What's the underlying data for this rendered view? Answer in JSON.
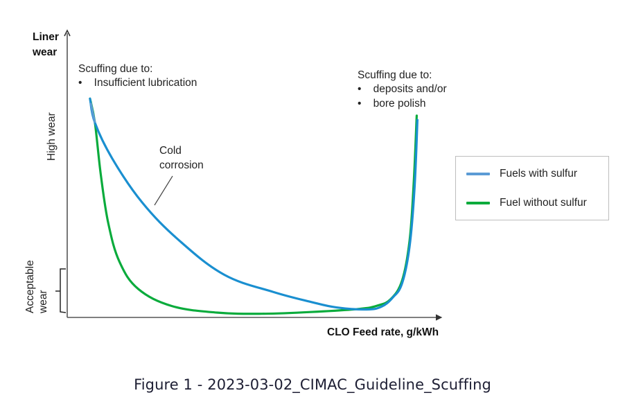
{
  "chart_data": {
    "type": "line",
    "title": "",
    "xlabel": "CLO Feed rate, g/kWh",
    "ylabel": "Liner wear",
    "xlim": [
      0,
      100
    ],
    "ylim": [
      0,
      100
    ],
    "x_ticks": [],
    "y_ticks": [],
    "y_region_labels": [
      {
        "id": "high",
        "text": "High wear"
      },
      {
        "id": "acceptable",
        "text": "Acceptable wear",
        "lines": [
          "Acceptable",
          "wear"
        ],
        "range": [
          2,
          17
        ]
      }
    ],
    "legend": {
      "placement": "right",
      "entries": [
        "Fuels with sulfur",
        "Fuel without sulfur"
      ]
    },
    "series": [
      {
        "name": "Fuels with sulfur",
        "color": "#1a8fd0",
        "legend_color": "#5b9bd5",
        "x": [
          6.1,
          7.4,
          12,
          20,
          30,
          42,
          55,
          65,
          72,
          80,
          84,
          87,
          89.5,
          91.5,
          92.8,
          93.6
        ],
        "y": [
          77,
          68.5,
          56,
          40.5,
          27,
          15,
          9,
          5.5,
          3.5,
          2.8,
          3.8,
          7,
          12,
          25,
          45,
          69.5
        ]
      },
      {
        "name": "Fuel without sulfur",
        "color": "#0aab3c",
        "legend_color": "#0aab3c",
        "x": [
          6.1,
          7.4,
          9,
          11,
          14,
          19,
          28,
          40,
          52,
          65,
          78,
          83,
          86.5,
          89.5,
          91.5,
          92.6,
          93.4
        ],
        "y": [
          77,
          68.5,
          50,
          33,
          19.5,
          10,
          4,
          1.7,
          1.3,
          1.9,
          3,
          4.2,
          6.5,
          13,
          27,
          47,
          71
        ]
      }
    ],
    "annotations": [
      {
        "id": "left",
        "lines": [
          "Scuffing due to:",
          "•    Insufficient lubrication"
        ]
      },
      {
        "id": "right",
        "lines": [
          "Scuffing due to:",
          "•    deposits and/or",
          "•    bore polish"
        ]
      },
      {
        "id": "middle",
        "lines": [
          "Cold",
          "corrosion"
        ],
        "pointer_to_series": "Fuels with sulfur"
      }
    ]
  },
  "caption": "Figure 1 - 2023-03-02_CIMAC_Guideline_Scuffing"
}
